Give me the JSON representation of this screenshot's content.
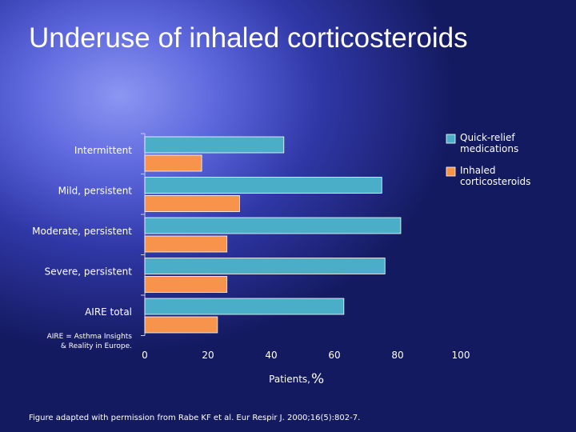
{
  "slide_title": "Underuse of inhaled corticosteroids",
  "footnote": "Figure adapted with permission from Rabe KF et al. Eur Respir J. 2000;16(5):802-7.",
  "colors": {
    "quick_relief": "#4aaec8",
    "inhaled": "#f7934a",
    "axis": "#c8cadc"
  },
  "chart_data": {
    "type": "bar",
    "orientation": "horizontal",
    "categories": [
      "Intermittent",
      "Mild, persistent",
      "Moderate, persistent",
      "Severe, persistent",
      "AIRE total"
    ],
    "series": [
      {
        "name": "Quick-relief medications",
        "label_lines": [
          "Quick-relief",
          "medications"
        ],
        "values": [
          44,
          75,
          81,
          76,
          63
        ]
      },
      {
        "name": "Inhaled corticosteroids",
        "label_lines": [
          "Inhaled",
          "corticosteroids"
        ],
        "values": [
          18,
          30,
          26,
          26,
          23
        ]
      }
    ],
    "xlabel": "Patients,",
    "xlabel_unit": "%",
    "xticks": [
      "0",
      "20",
      "40",
      "60",
      "80",
      "100"
    ],
    "xlim": [
      0,
      100
    ],
    "legend_position": "top-right",
    "annotation_lines": [
      "AIRE = Asthma Insights",
      "& Reality in Europe."
    ]
  }
}
